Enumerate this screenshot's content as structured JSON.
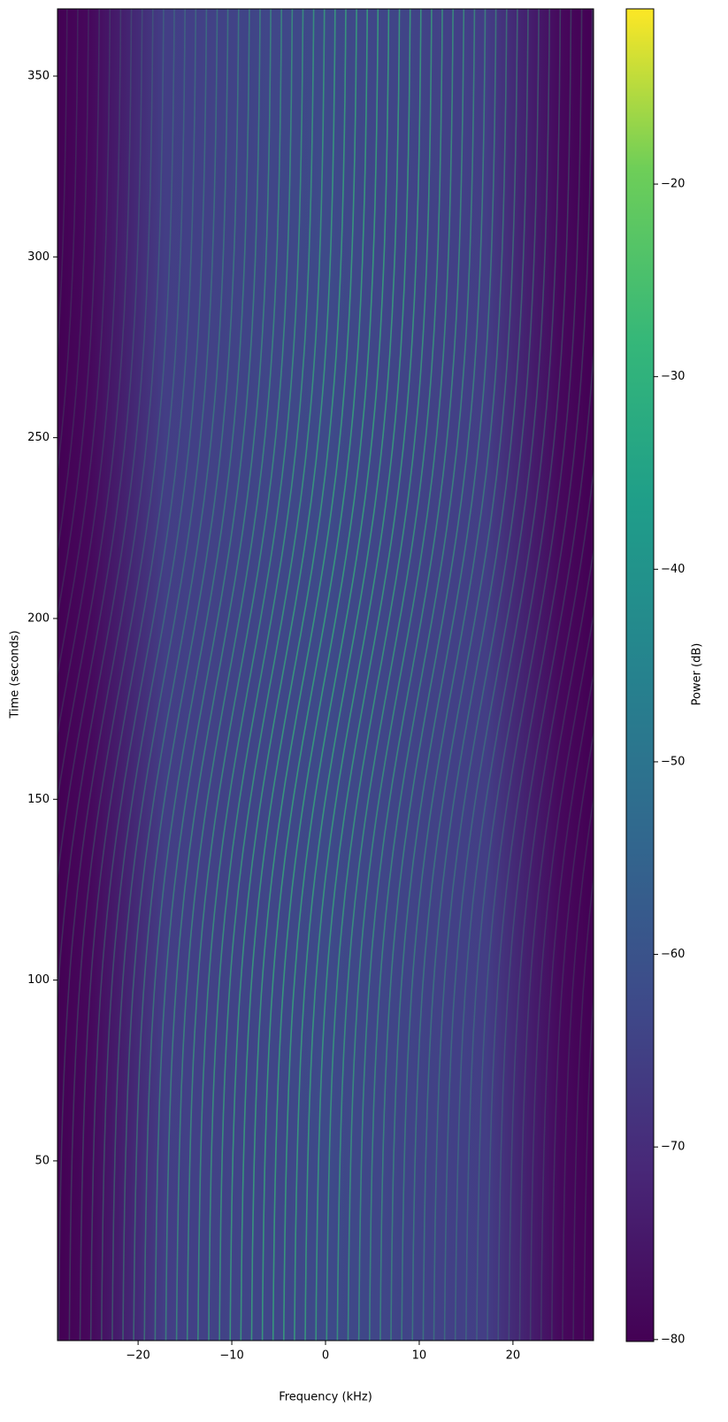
{
  "chart_data": {
    "type": "heatmap",
    "xlabel": "Frequency (kHz)",
    "ylabel": "Time (seconds)",
    "xlim": [
      -28.6,
      28.6
    ],
    "xticks": [
      {
        "value": -20,
        "label": "−20"
      },
      {
        "value": -10,
        "label": "−10"
      },
      0,
      10,
      20
    ],
    "ylim": [
      0.3,
      368.6
    ],
    "yticks": [
      50,
      100,
      150,
      200,
      250,
      300,
      350
    ],
    "colormap": "viridis",
    "colorbar": {
      "label": "Power (dB)",
      "lim": [
        -80.1,
        -10.9
      ],
      "ticks": [
        {
          "value": -80,
          "label": "−80"
        },
        {
          "value": -70,
          "label": "−70"
        },
        {
          "value": -60,
          "label": "−60"
        },
        {
          "value": -50,
          "label": "−50"
        },
        {
          "value": -40,
          "label": "−40"
        },
        {
          "value": -30,
          "label": "−30"
        },
        {
          "value": -20,
          "label": "−20"
        }
      ]
    }
  }
}
